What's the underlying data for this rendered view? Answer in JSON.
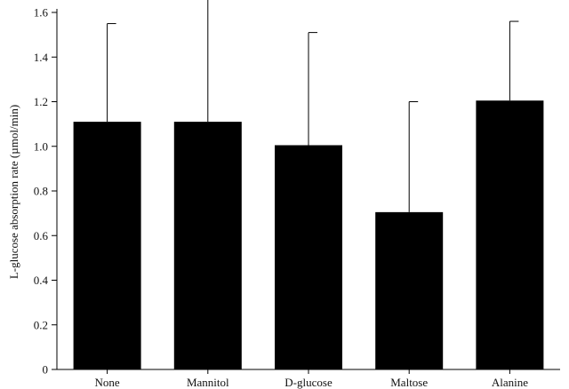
{
  "chart_data": {
    "type": "bar",
    "title": "",
    "xlabel": "",
    "ylabel": "L-glucose absorption rate (µmol/min)",
    "categories": [
      "None",
      "Mannitol",
      "D-glucose",
      "Maltose",
      "Alanine"
    ],
    "series": [
      {
        "values": [
          1.11,
          1.11,
          1.005,
          0.705,
          1.205
        ],
        "error_upper": [
          0.44,
          0.56,
          0.505,
          0.495,
          0.355
        ]
      }
    ],
    "ylim": [
      0,
      1.6
    ],
    "yticks": [
      0,
      0.2,
      0.4,
      0.6,
      0.8,
      1.0,
      1.2,
      1.4,
      1.6
    ],
    "ytick_labels": [
      "0",
      "0.2",
      "0.4",
      "0.6",
      "0.8",
      "1.0",
      "1.2",
      "1.4",
      "1.6"
    ],
    "grid": false,
    "legend": "none",
    "colors": {
      "bar": "#000000",
      "axis": "#000000",
      "error_bar": "#000000",
      "background": "#ffffff"
    }
  }
}
